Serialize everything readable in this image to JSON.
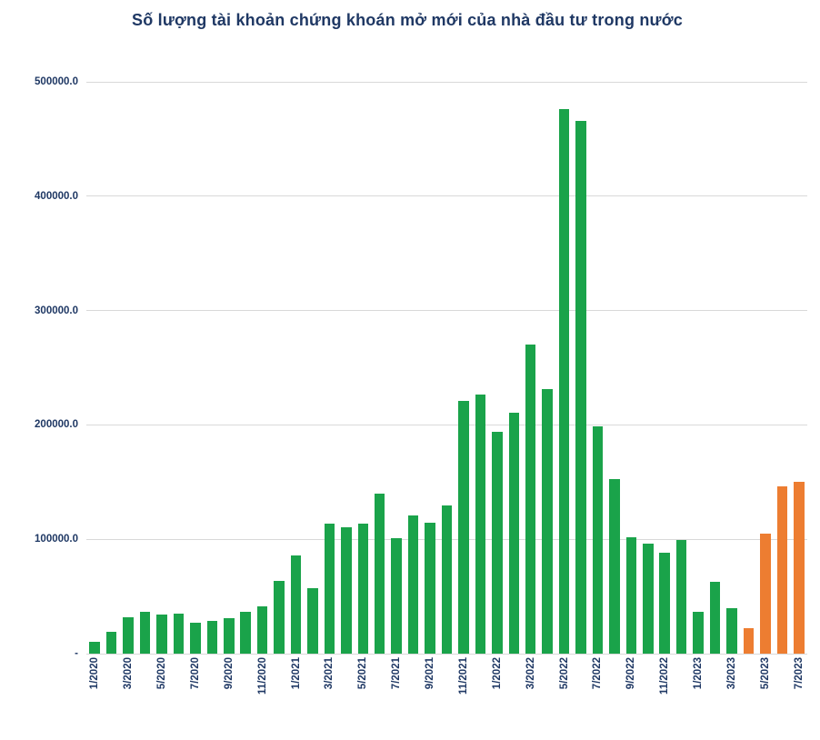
{
  "chart_data": {
    "type": "bar",
    "title": "Số lượng tài khoản chứng khoán mở mới của nhà đầu tư trong nước",
    "xlabel": "",
    "ylabel": "",
    "ylim": [
      0,
      500000
    ],
    "grid": true,
    "legend": "none",
    "x_tick_every": 2,
    "colors": {
      "default_bar": "#1aa34a",
      "highlight_bar": "#ed7d31",
      "title_text": "#1f3864",
      "axis_text": "#1f3864",
      "gridline": "#d9d9d9"
    },
    "highlight_start_index": 39,
    "y_ticks": [
      {
        "label": "500000.0",
        "value": 500000
      },
      {
        "label": "400000.0",
        "value": 400000
      },
      {
        "label": "300000.0",
        "value": 300000
      },
      {
        "label": "200000.0",
        "value": 200000
      },
      {
        "label": "100000.0",
        "value": 100000
      },
      {
        "label": "-",
        "value": 0
      }
    ],
    "x": [
      "1/2020",
      "2/2020",
      "3/2020",
      "4/2020",
      "5/2020",
      "6/2020",
      "7/2020",
      "8/2020",
      "9/2020",
      "10/2020",
      "11/2020",
      "12/2020",
      "1/2021",
      "2/2021",
      "3/2021",
      "4/2021",
      "5/2021",
      "6/2021",
      "7/2021",
      "8/2021",
      "9/2021",
      "10/2021",
      "11/2021",
      "12/2021",
      "1/2022",
      "2/2022",
      "3/2022",
      "4/2022",
      "5/2022",
      "6/2022",
      "7/2022",
      "8/2022",
      "9/2022",
      "10/2022",
      "11/2022",
      "12/2022",
      "1/2023",
      "2/2023",
      "3/2023",
      "4/2023",
      "5/2023",
      "6/2023",
      "7/2023"
    ],
    "values": [
      10600,
      18900,
      31900,
      36700,
      34000,
      35000,
      27200,
      28300,
      31300,
      36300,
      41200,
      63600,
      86100,
      57100,
      113900,
      110700,
      113700,
      140100,
      101100,
      120500,
      114800,
      129800,
      220800,
      226600,
      194300,
      210900,
      270200,
      231200,
      476300,
      466000,
      199000,
      153000,
      102000,
      96000,
      88300,
      99000,
      36300,
      63000,
      39900,
      22500,
      104700,
      145900,
      150400
    ]
  }
}
